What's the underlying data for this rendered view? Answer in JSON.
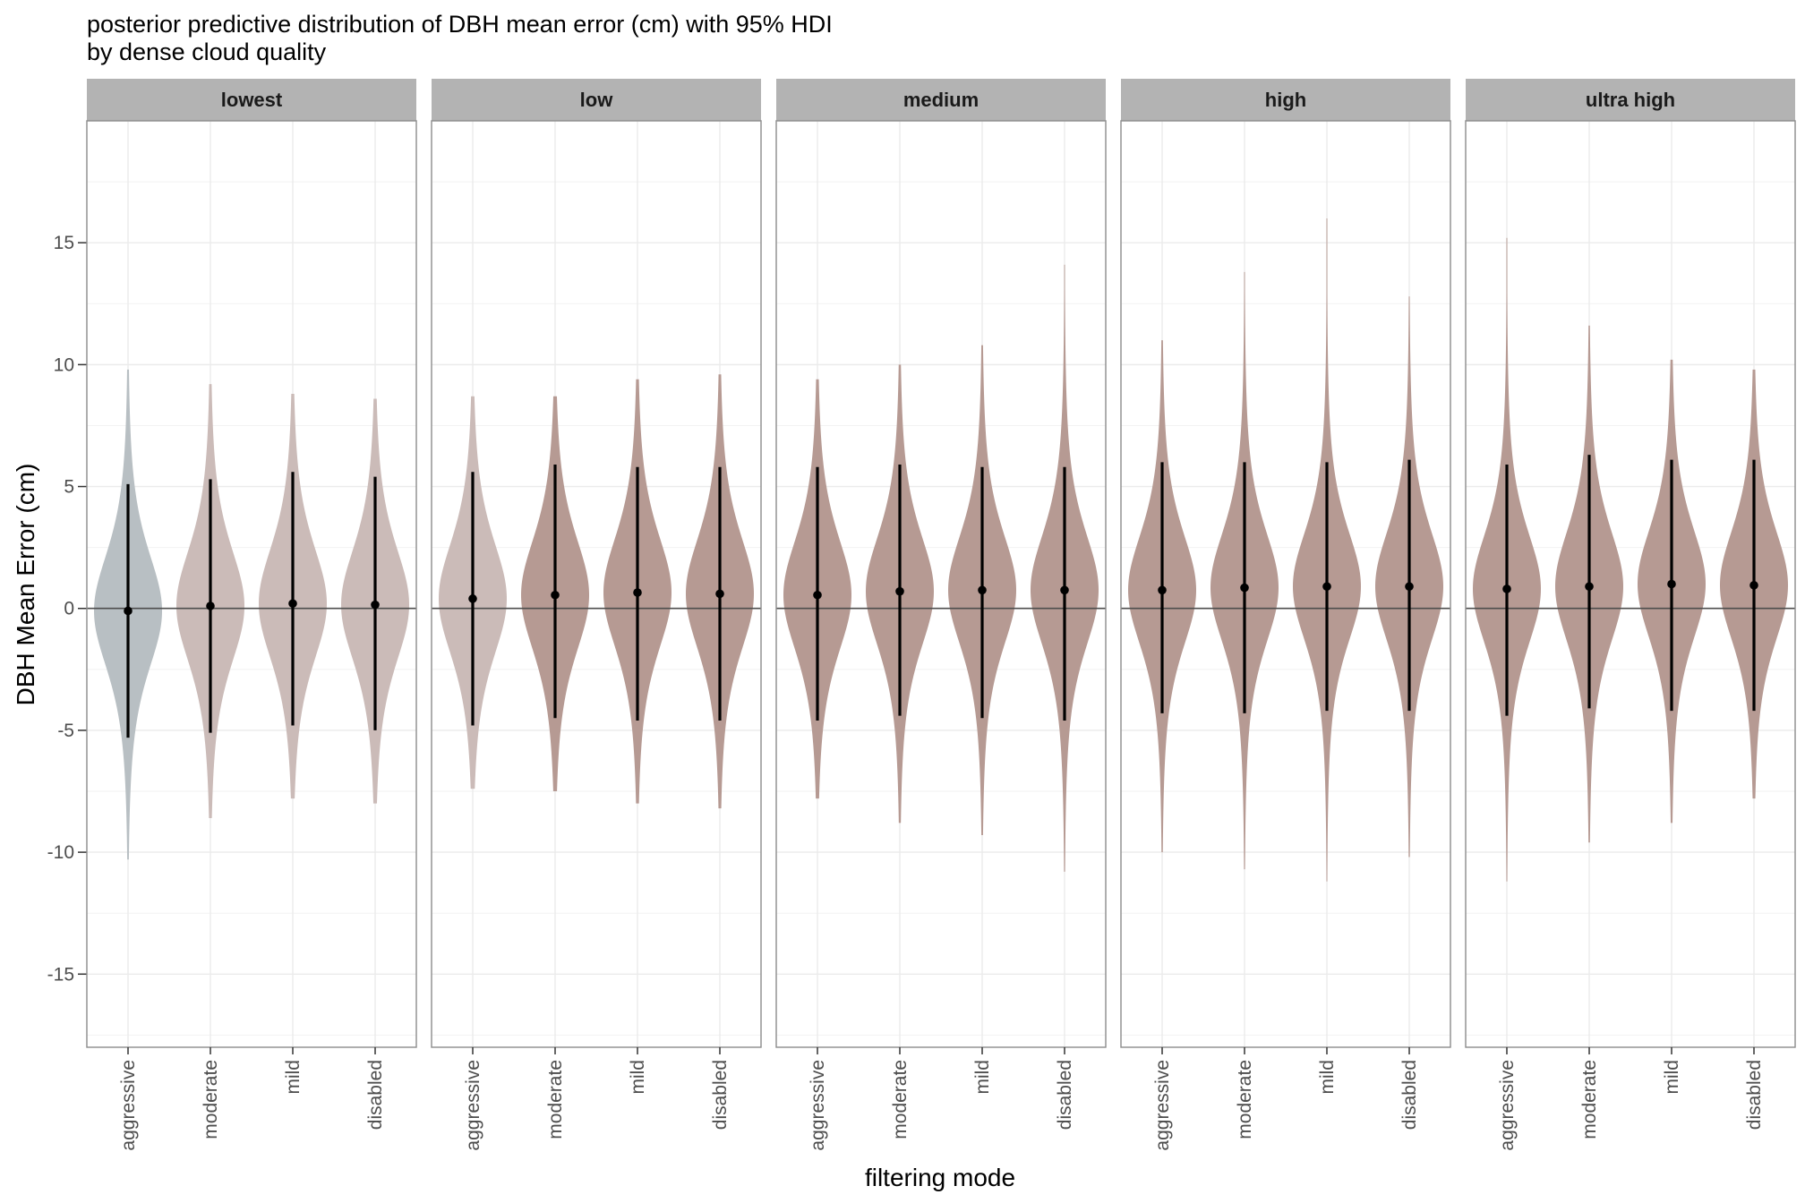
{
  "chart_data": {
    "type": "violin",
    "title": "posterior predictive distribution of DBH mean error (cm) with 95% HDI",
    "subtitle": "by dense cloud quality",
    "xlabel": "filtering mode",
    "ylabel": "DBH Mean Error (cm)",
    "ylim": [
      -18,
      20
    ],
    "yticks": [
      -15,
      -10,
      -5,
      0,
      5,
      10,
      15
    ],
    "grid": true,
    "reference_line_y": 0,
    "categories": [
      "aggressive",
      "moderate",
      "mild",
      "disabled"
    ],
    "colors": {
      "grey": "#b8bfc3",
      "light": "#cbbbb8",
      "dark": "#b69a93",
      "strip": "#b3b3b3",
      "panel_border": "#8c8c8c",
      "grid": "#ebebeb"
    },
    "panels": [
      {
        "label": "lowest",
        "violins": [
          {
            "category": "aggressive",
            "median": -0.1,
            "hdi": [
              -5.3,
              5.1
            ],
            "range": [
              -10.3,
              9.8
            ],
            "fill": "grey"
          },
          {
            "category": "moderate",
            "median": 0.1,
            "hdi": [
              -5.1,
              5.3
            ],
            "range": [
              -8.6,
              9.2
            ],
            "fill": "light"
          },
          {
            "category": "mild",
            "median": 0.2,
            "hdi": [
              -4.8,
              5.6
            ],
            "range": [
              -7.8,
              8.8
            ],
            "fill": "light"
          },
          {
            "category": "disabled",
            "median": 0.15,
            "hdi": [
              -5.0,
              5.4
            ],
            "range": [
              -8.0,
              8.6
            ],
            "fill": "light"
          }
        ]
      },
      {
        "label": "low",
        "violins": [
          {
            "category": "aggressive",
            "median": 0.4,
            "hdi": [
              -4.8,
              5.6
            ],
            "range": [
              -7.4,
              8.7
            ],
            "fill": "light"
          },
          {
            "category": "moderate",
            "median": 0.55,
            "hdi": [
              -4.5,
              5.9
            ],
            "range": [
              -7.5,
              8.7
            ],
            "fill": "dark"
          },
          {
            "category": "mild",
            "median": 0.65,
            "hdi": [
              -4.6,
              5.8
            ],
            "range": [
              -8.0,
              9.4
            ],
            "fill": "dark"
          },
          {
            "category": "disabled",
            "median": 0.6,
            "hdi": [
              -4.6,
              5.8
            ],
            "range": [
              -8.2,
              9.6
            ],
            "fill": "dark"
          }
        ]
      },
      {
        "label": "medium",
        "violins": [
          {
            "category": "aggressive",
            "median": 0.55,
            "hdi": [
              -4.6,
              5.8
            ],
            "range": [
              -7.8,
              9.4
            ],
            "fill": "dark"
          },
          {
            "category": "moderate",
            "median": 0.7,
            "hdi": [
              -4.4,
              5.9
            ],
            "range": [
              -8.8,
              10.0
            ],
            "fill": "dark"
          },
          {
            "category": "mild",
            "median": 0.75,
            "hdi": [
              -4.5,
              5.8
            ],
            "range": [
              -9.3,
              10.8
            ],
            "fill": "dark"
          },
          {
            "category": "disabled",
            "median": 0.75,
            "hdi": [
              -4.6,
              5.8
            ],
            "range": [
              -10.8,
              14.1
            ],
            "fill": "dark"
          }
        ]
      },
      {
        "label": "high",
        "violins": [
          {
            "category": "aggressive",
            "median": 0.75,
            "hdi": [
              -4.3,
              6.0
            ],
            "range": [
              -10.0,
              11.0
            ],
            "fill": "dark"
          },
          {
            "category": "moderate",
            "median": 0.85,
            "hdi": [
              -4.3,
              6.0
            ],
            "range": [
              -10.7,
              13.8
            ],
            "fill": "dark"
          },
          {
            "category": "mild",
            "median": 0.9,
            "hdi": [
              -4.2,
              6.0
            ],
            "range": [
              -11.2,
              16.0
            ],
            "fill": "dark"
          },
          {
            "category": "disabled",
            "median": 0.9,
            "hdi": [
              -4.2,
              6.1
            ],
            "range": [
              -10.2,
              12.8
            ],
            "fill": "dark"
          }
        ]
      },
      {
        "label": "ultra high",
        "violins": [
          {
            "category": "aggressive",
            "median": 0.8,
            "hdi": [
              -4.4,
              5.9
            ],
            "range": [
              -11.2,
              15.2
            ],
            "fill": "dark"
          },
          {
            "category": "moderate",
            "median": 0.9,
            "hdi": [
              -4.1,
              6.3
            ],
            "range": [
              -9.6,
              11.6
            ],
            "fill": "dark"
          },
          {
            "category": "mild",
            "median": 1.0,
            "hdi": [
              -4.2,
              6.1
            ],
            "range": [
              -8.8,
              10.2
            ],
            "fill": "dark"
          },
          {
            "category": "disabled",
            "median": 0.95,
            "hdi": [
              -4.2,
              6.1
            ],
            "range": [
              -7.8,
              9.8
            ],
            "fill": "dark"
          }
        ]
      }
    ]
  }
}
